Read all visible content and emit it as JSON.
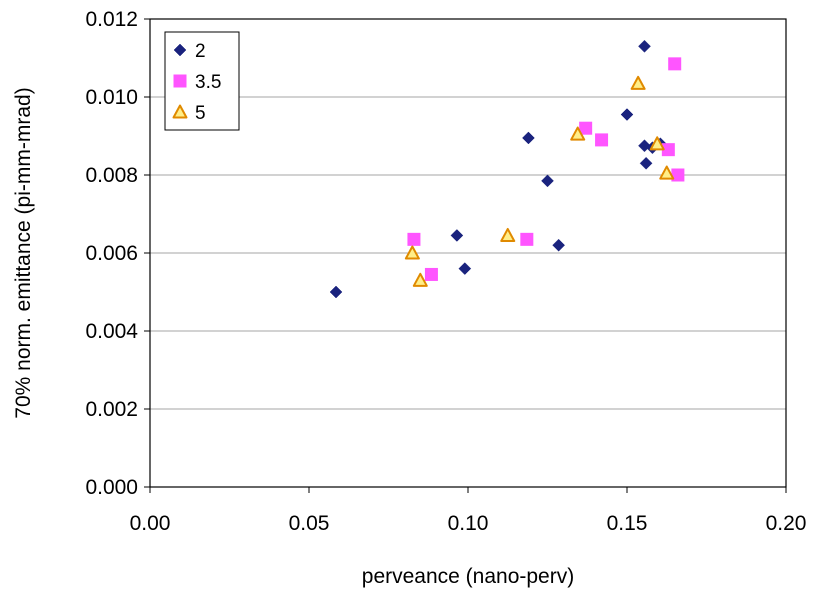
{
  "chart_data": {
    "type": "scatter",
    "title": "",
    "xlabel": "perveance (nano-perv)",
    "ylabel": "70% norm. emittance (pi-mm-mrad)",
    "xlim": [
      0,
      0.2
    ],
    "ylim": [
      0,
      0.012
    ],
    "x_ticks": [
      "0.00",
      "0.05",
      "0.10",
      "0.15",
      "0.20"
    ],
    "y_ticks": [
      "0.000",
      "0.002",
      "0.004",
      "0.006",
      "0.008",
      "0.010",
      "0.012"
    ],
    "x_tick_values": [
      0,
      0.05,
      0.1,
      0.15,
      0.2
    ],
    "y_tick_values": [
      0,
      0.002,
      0.004,
      0.006,
      0.008,
      0.01,
      0.012
    ],
    "grid": "horizontal",
    "legend_position": "top-left",
    "series": [
      {
        "name": "2",
        "marker": "diamond",
        "color": "#1a237e",
        "points": [
          [
            0.0585,
            0.005
          ],
          [
            0.0965,
            0.00645
          ],
          [
            0.099,
            0.0056
          ],
          [
            0.119,
            0.00895
          ],
          [
            0.125,
            0.00785
          ],
          [
            0.1285,
            0.0062
          ],
          [
            0.15,
            0.00955
          ],
          [
            0.1555,
            0.0113
          ],
          [
            0.1555,
            0.00875
          ],
          [
            0.156,
            0.0083
          ],
          [
            0.158,
            0.0087
          ],
          [
            0.1605,
            0.0088
          ]
        ]
      },
      {
        "name": "3.5",
        "marker": "square",
        "color": "#ff55ff",
        "points": [
          [
            0.083,
            0.00635
          ],
          [
            0.0885,
            0.00545
          ],
          [
            0.1185,
            0.00635
          ],
          [
            0.137,
            0.0092
          ],
          [
            0.142,
            0.0089
          ],
          [
            0.163,
            0.00865
          ],
          [
            0.165,
            0.01085
          ],
          [
            0.166,
            0.008
          ]
        ]
      },
      {
        "name": "5",
        "marker": "triangle",
        "color": "#ffee88",
        "stroke": "#e08a00",
        "points": [
          [
            0.0825,
            0.006
          ],
          [
            0.085,
            0.0053
          ],
          [
            0.1125,
            0.00645
          ],
          [
            0.1345,
            0.00905
          ],
          [
            0.1535,
            0.01035
          ],
          [
            0.1595,
            0.0088
          ],
          [
            0.1625,
            0.00805
          ]
        ]
      }
    ]
  }
}
